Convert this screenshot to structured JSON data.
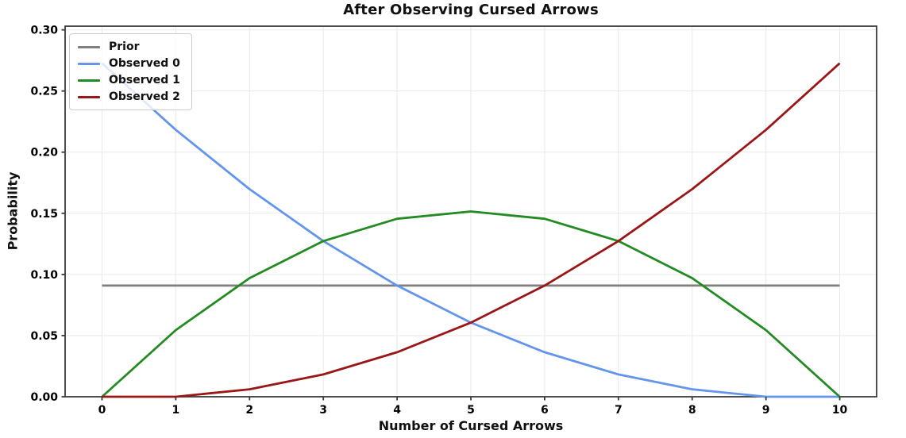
{
  "chart_data": {
    "type": "line",
    "title": "After Observing Cursed Arrows",
    "xlabel": "Number of Cursed Arrows",
    "ylabel": "Probability",
    "grid": true,
    "legend_position": "upper-left",
    "xlim": [
      -0.5,
      10.5
    ],
    "ylim": [
      0,
      0.303
    ],
    "x": [
      0,
      1,
      2,
      3,
      4,
      5,
      6,
      7,
      8,
      9,
      10
    ],
    "xticks": [
      0,
      1,
      2,
      3,
      4,
      5,
      6,
      7,
      8,
      9,
      10
    ],
    "xtick_labels": [
      "0",
      "1",
      "2",
      "3",
      "4",
      "5",
      "6",
      "7",
      "8",
      "9",
      "10"
    ],
    "yticks": [
      0,
      0.05,
      0.1,
      0.15,
      0.2,
      0.25,
      0.3
    ],
    "ytick_labels": [
      "0.00",
      "0.05",
      "0.10",
      "0.15",
      "0.20",
      "0.25",
      "0.30"
    ],
    "series": [
      {
        "name": "Prior",
        "color": "#808080",
        "values": [
          0.0909,
          0.0909,
          0.0909,
          0.0909,
          0.0909,
          0.0909,
          0.0909,
          0.0909,
          0.0909,
          0.0909,
          0.0909
        ]
      },
      {
        "name": "Observed 0",
        "color": "#6495ED",
        "values": [
          0.2727,
          0.2182,
          0.1697,
          0.1273,
          0.0909,
          0.0606,
          0.0364,
          0.0182,
          0.0061,
          0.0,
          0.0
        ]
      },
      {
        "name": "Observed 1",
        "color": "#228B22",
        "values": [
          0.0,
          0.0545,
          0.097,
          0.1273,
          0.1455,
          0.1515,
          0.1455,
          0.1273,
          0.097,
          0.0545,
          0.0
        ]
      },
      {
        "name": "Observed 2",
        "color": "#9A1717",
        "values": [
          0.0,
          0.0,
          0.0061,
          0.0182,
          0.0364,
          0.0606,
          0.0909,
          0.1273,
          0.1697,
          0.2182,
          0.2727
        ]
      }
    ],
    "style": {
      "grid_color": "#e9e9e9",
      "spine_color": "#3a3a3a",
      "background": "#ffffff"
    }
  }
}
